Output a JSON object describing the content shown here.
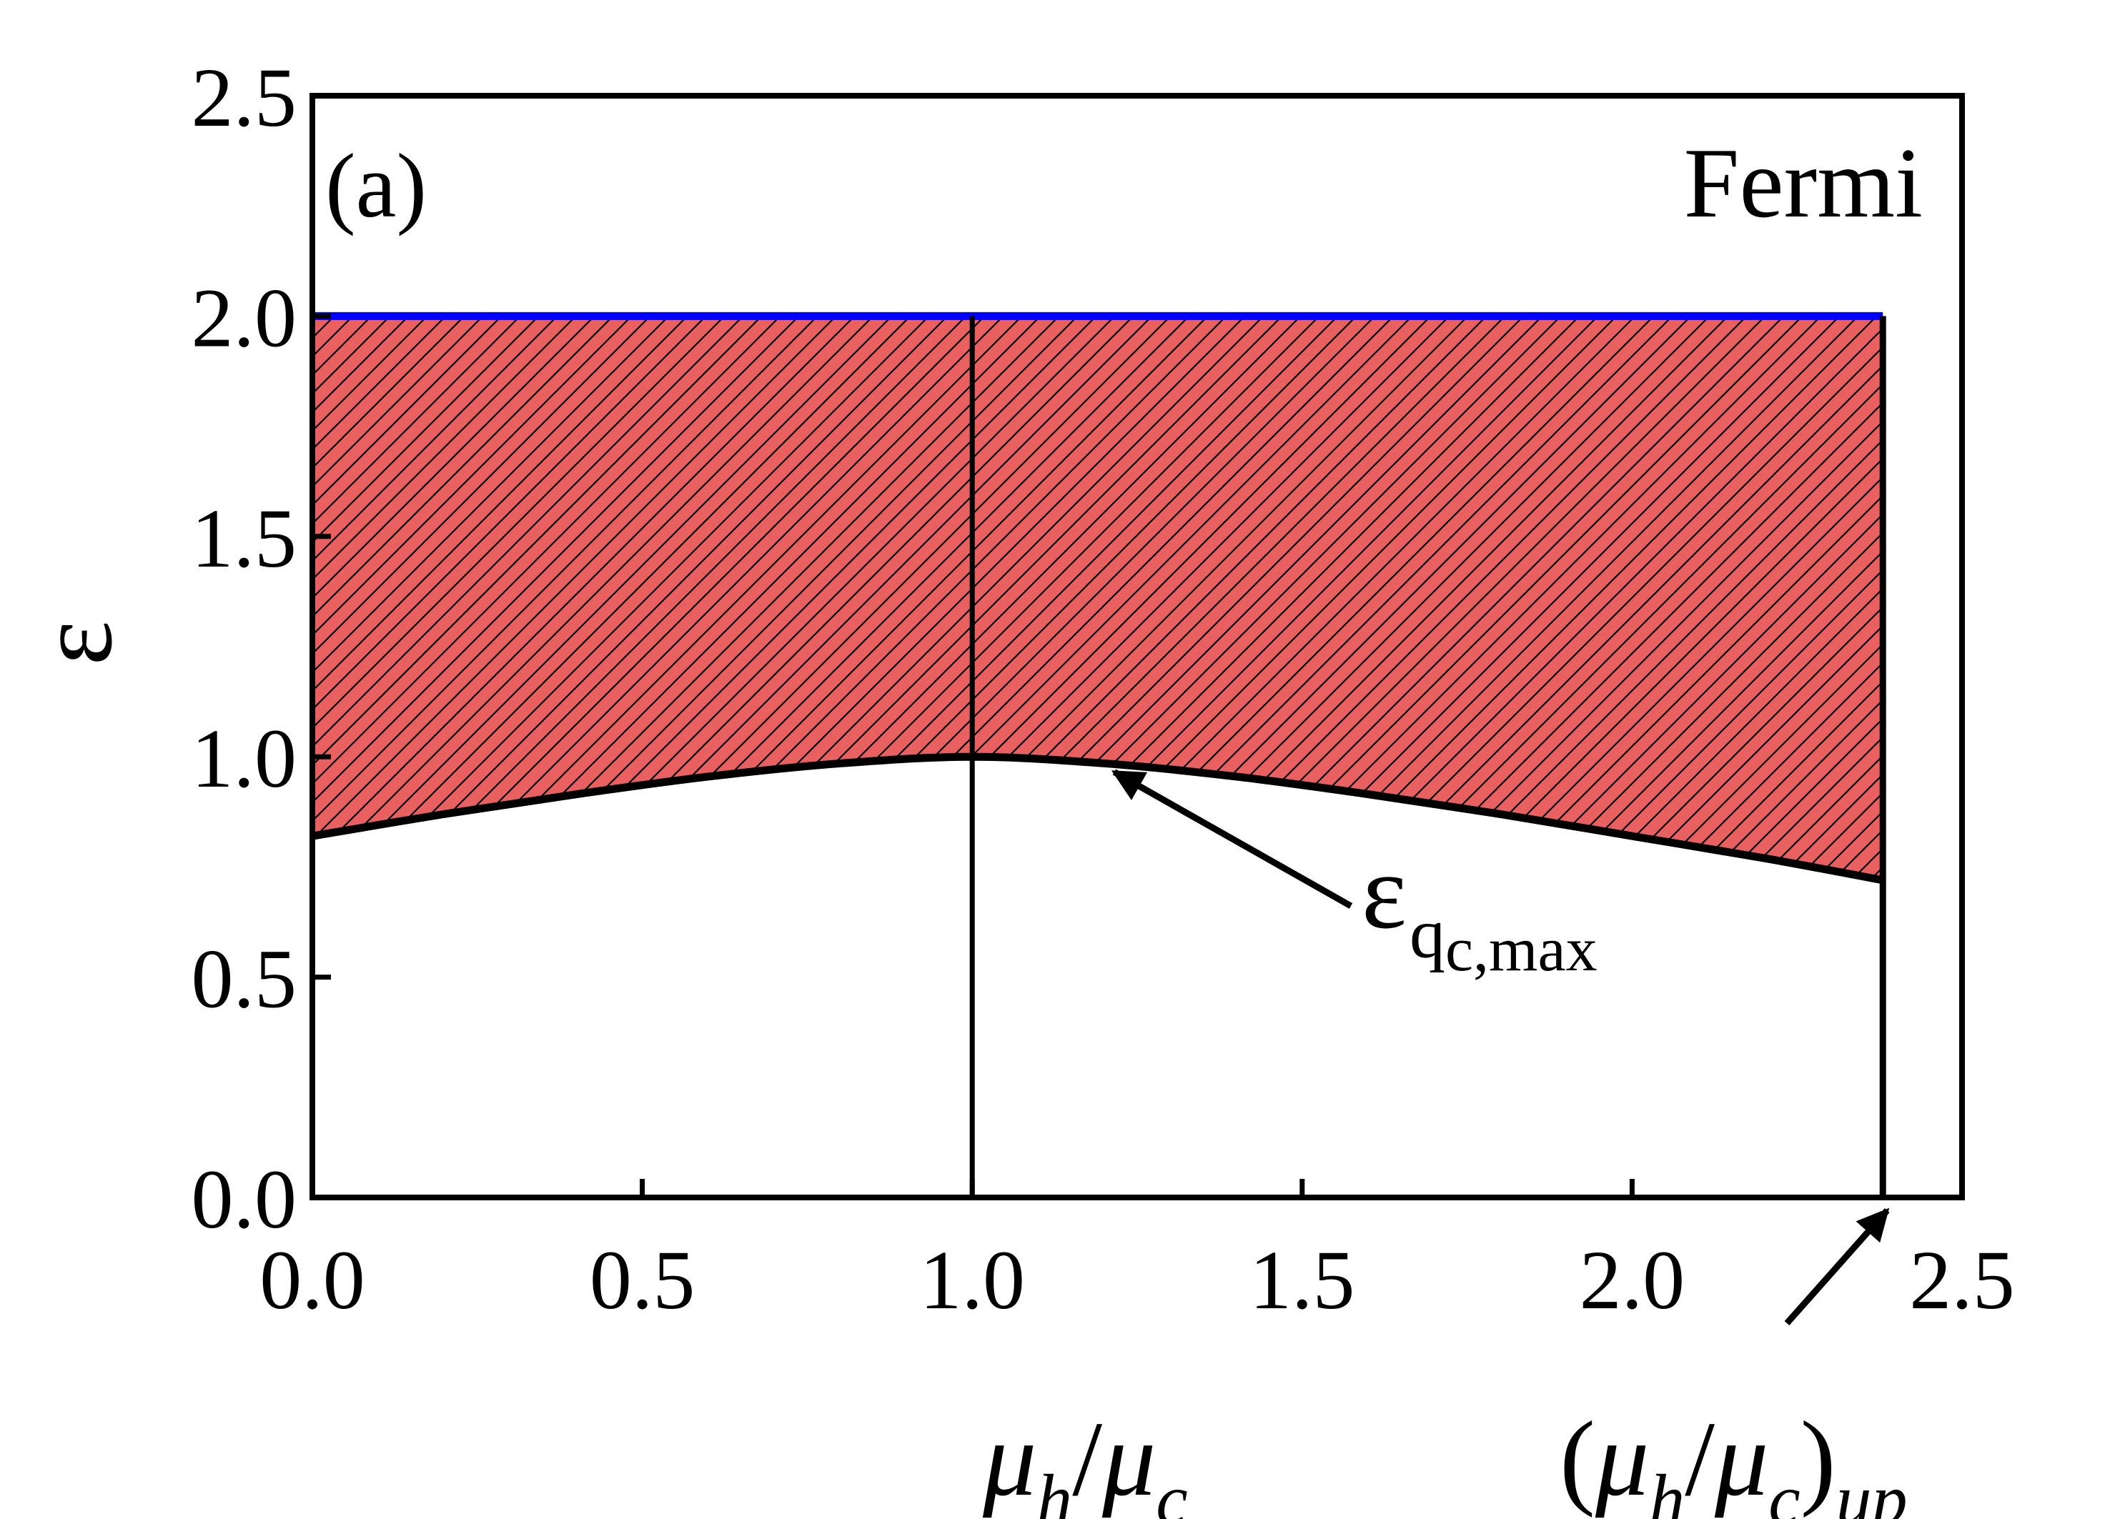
{
  "chart_data": {
    "type": "area",
    "panel_label": "(a)",
    "region_label": "Fermi",
    "xlabel": {
      "var_num": "μ",
      "sub_num": "h",
      "slash": "/",
      "var_den": "μ",
      "sub_den": "c"
    },
    "ylabel": "ε",
    "xlim": [
      0,
      2.5
    ],
    "ylim": [
      0,
      2.5
    ],
    "xticks": [
      0.0,
      0.5,
      1.0,
      1.5,
      2.0,
      2.5
    ],
    "yticks": [
      0.0,
      0.5,
      1.0,
      1.5,
      2.0,
      2.5
    ],
    "xtick_labels": [
      "0.0",
      "0.5",
      "1.0",
      "1.5",
      "2.0",
      "2.5"
    ],
    "ytick_labels": [
      "0.0",
      "0.5",
      "1.0",
      "1.5",
      "2.0",
      "2.5"
    ],
    "grid": false,
    "upper_line": {
      "y": 2.0,
      "x_range": [
        0,
        2.38
      ],
      "color": "#0000ff"
    },
    "lower_curve": {
      "x": [
        0.0,
        0.2,
        0.4,
        0.6,
        0.8,
        1.0,
        1.2,
        1.4,
        1.6,
        1.8,
        2.0,
        2.2,
        2.38
      ],
      "y": [
        0.82,
        0.87,
        0.915,
        0.955,
        0.985,
        1.0,
        0.985,
        0.955,
        0.915,
        0.87,
        0.82,
        0.77,
        0.72
      ],
      "color": "#000000"
    },
    "vertical_lines": [
      {
        "x": 1.0,
        "y_range": [
          0,
          2.0
        ]
      },
      {
        "x": 2.38,
        "y_range": [
          0,
          2.0
        ]
      }
    ],
    "fill": {
      "between": [
        "lower_curve",
        "upper_line"
      ],
      "color": "#e86060",
      "hatch": "diagonal"
    },
    "annotations": [
      {
        "main": "ε",
        "sub": "q",
        "subsub": "c,max",
        "points_to": {
          "x": 1.2,
          "y": 0.985
        }
      },
      {
        "open": "(",
        "var_num": "μ",
        "sub_num": "h",
        "slash": "/",
        "var_den": "μ",
        "sub_den": "c",
        "close": ")",
        "sub_close": "up",
        "points_to": {
          "x": 2.38,
          "y": 0.0
        }
      }
    ]
  }
}
